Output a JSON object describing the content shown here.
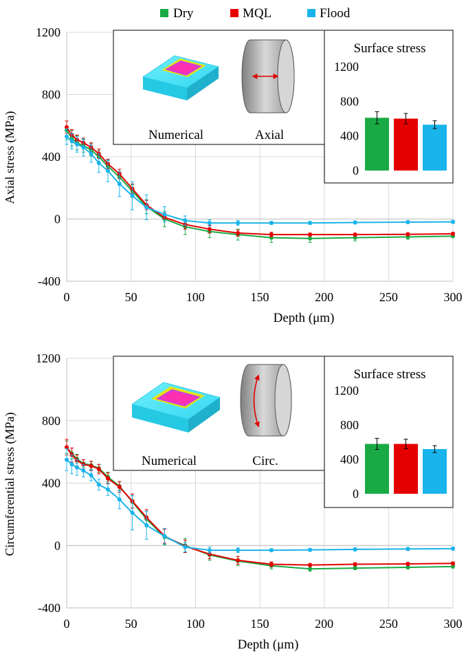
{
  "legend": [
    {
      "name": "Dry",
      "color": "#1aaa45"
    },
    {
      "name": "MQL",
      "color": "#e40000"
    },
    {
      "name": "Flood",
      "color": "#18b4eb"
    }
  ],
  "chart_data": [
    {
      "type": "line",
      "xlabel": "Depth (μm)",
      "ylabel": "Axial stress (MPa)",
      "xlim": [
        0,
        300
      ],
      "ylim": [
        -400,
        1200
      ],
      "x_ticks": [
        "0",
        "50",
        "100",
        "150",
        "200",
        "250",
        "300"
      ],
      "y_ticks": [
        "-400",
        "0",
        "400",
        "800",
        "1200"
      ],
      "grid": true,
      "legend_position": "top",
      "x": [
        0,
        4,
        8,
        13,
        19,
        25,
        32,
        41,
        51,
        62,
        76,
        92,
        111,
        133,
        159,
        189,
        224,
        265,
        300
      ],
      "series": [
        {
          "name": "Dry",
          "values": [
            570,
            520,
            490,
            470,
            445,
            400,
            340,
            270,
            180,
            80,
            0,
            -50,
            -80,
            -100,
            -120,
            -125,
            -120,
            -115,
            -110
          ],
          "errors": [
            60,
            50,
            45,
            40,
            40,
            40,
            35,
            35,
            40,
            45,
            50,
            50,
            40,
            35,
            30,
            25,
            20,
            15,
            10
          ]
        },
        {
          "name": "MQL",
          "values": [
            590,
            540,
            510,
            490,
            460,
            420,
            355,
            290,
            195,
            90,
            10,
            -35,
            -65,
            -90,
            -100,
            -100,
            -100,
            -98,
            -95
          ],
          "errors": [
            40,
            35,
            30,
            30,
            30,
            30,
            30,
            30,
            30,
            30,
            30,
            30,
            25,
            20,
            15,
            10,
            10,
            10,
            10
          ]
        },
        {
          "name": "Flood",
          "values": [
            530,
            500,
            480,
            460,
            420,
            360,
            310,
            225,
            150,
            75,
            30,
            -10,
            -25,
            -25,
            -25,
            -25,
            -22,
            -20,
            -18
          ],
          "errors": [
            50,
            50,
            50,
            55,
            55,
            60,
            70,
            80,
            90,
            80,
            50,
            30,
            20,
            15,
            10,
            10,
            10,
            10,
            10
          ]
        }
      ],
      "inset_labels": {
        "left": "Numerical",
        "right": "Axial"
      },
      "surface_stress": {
        "title": "Surface stress",
        "ylim": [
          0,
          1200
        ],
        "y_ticks": [
          "0",
          "400",
          "800",
          "1200"
        ],
        "categories": [
          "Dry",
          "MQL",
          "Flood"
        ],
        "values": [
          610,
          600,
          530
        ],
        "errors": [
          70,
          60,
          45
        ]
      }
    },
    {
      "type": "line",
      "xlabel": "Depth (μm)",
      "ylabel": "Circumferential stress (MPa)",
      "xlim": [
        0,
        300
      ],
      "ylim": [
        -400,
        1200
      ],
      "x_ticks": [
        "0",
        "50",
        "100",
        "150",
        "200",
        "250",
        "300"
      ],
      "y_ticks": [
        "-400",
        "0",
        "400",
        "800",
        "1200"
      ],
      "grid": true,
      "x": [
        0,
        4,
        8,
        13,
        19,
        25,
        32,
        41,
        51,
        62,
        76,
        92,
        111,
        133,
        159,
        189,
        224,
        265,
        300
      ],
      "series": [
        {
          "name": "Dry",
          "values": [
            630,
            590,
            555,
            525,
            515,
            495,
            440,
            380,
            280,
            170,
            55,
            0,
            -60,
            -100,
            -130,
            -150,
            -145,
            -140,
            -135
          ],
          "errors": [
            40,
            35,
            30,
            25,
            25,
            25,
            30,
            30,
            40,
            50,
            50,
            45,
            35,
            30,
            20,
            15,
            10,
            10,
            10
          ]
        },
        {
          "name": "MQL",
          "values": [
            630,
            580,
            545,
            520,
            510,
            490,
            430,
            375,
            285,
            180,
            60,
            -5,
            -55,
            -95,
            -120,
            -125,
            -120,
            -118,
            -115
          ],
          "errors": [
            50,
            45,
            35,
            30,
            30,
            30,
            35,
            35,
            45,
            50,
            45,
            40,
            30,
            25,
            15,
            10,
            10,
            10,
            10
          ]
        },
        {
          "name": "Flood",
          "values": [
            550,
            520,
            500,
            480,
            450,
            390,
            360,
            295,
            210,
            130,
            60,
            -10,
            -30,
            -30,
            -30,
            -28,
            -25,
            -22,
            -20
          ],
          "errors": [
            70,
            60,
            50,
            40,
            35,
            35,
            40,
            60,
            110,
            90,
            50,
            30,
            20,
            15,
            10,
            10,
            10,
            10,
            10
          ]
        }
      ],
      "inset_labels": {
        "left": "Numerical",
        "right": "Circ."
      },
      "surface_stress": {
        "title": "Surface stress",
        "ylim": [
          0,
          1200
        ],
        "y_ticks": [
          "0",
          "400",
          "800",
          "1200"
        ],
        "categories": [
          "Dry",
          "MQL",
          "Flood"
        ],
        "values": [
          580,
          580,
          520
        ],
        "errors": [
          65,
          55,
          40
        ]
      }
    }
  ]
}
